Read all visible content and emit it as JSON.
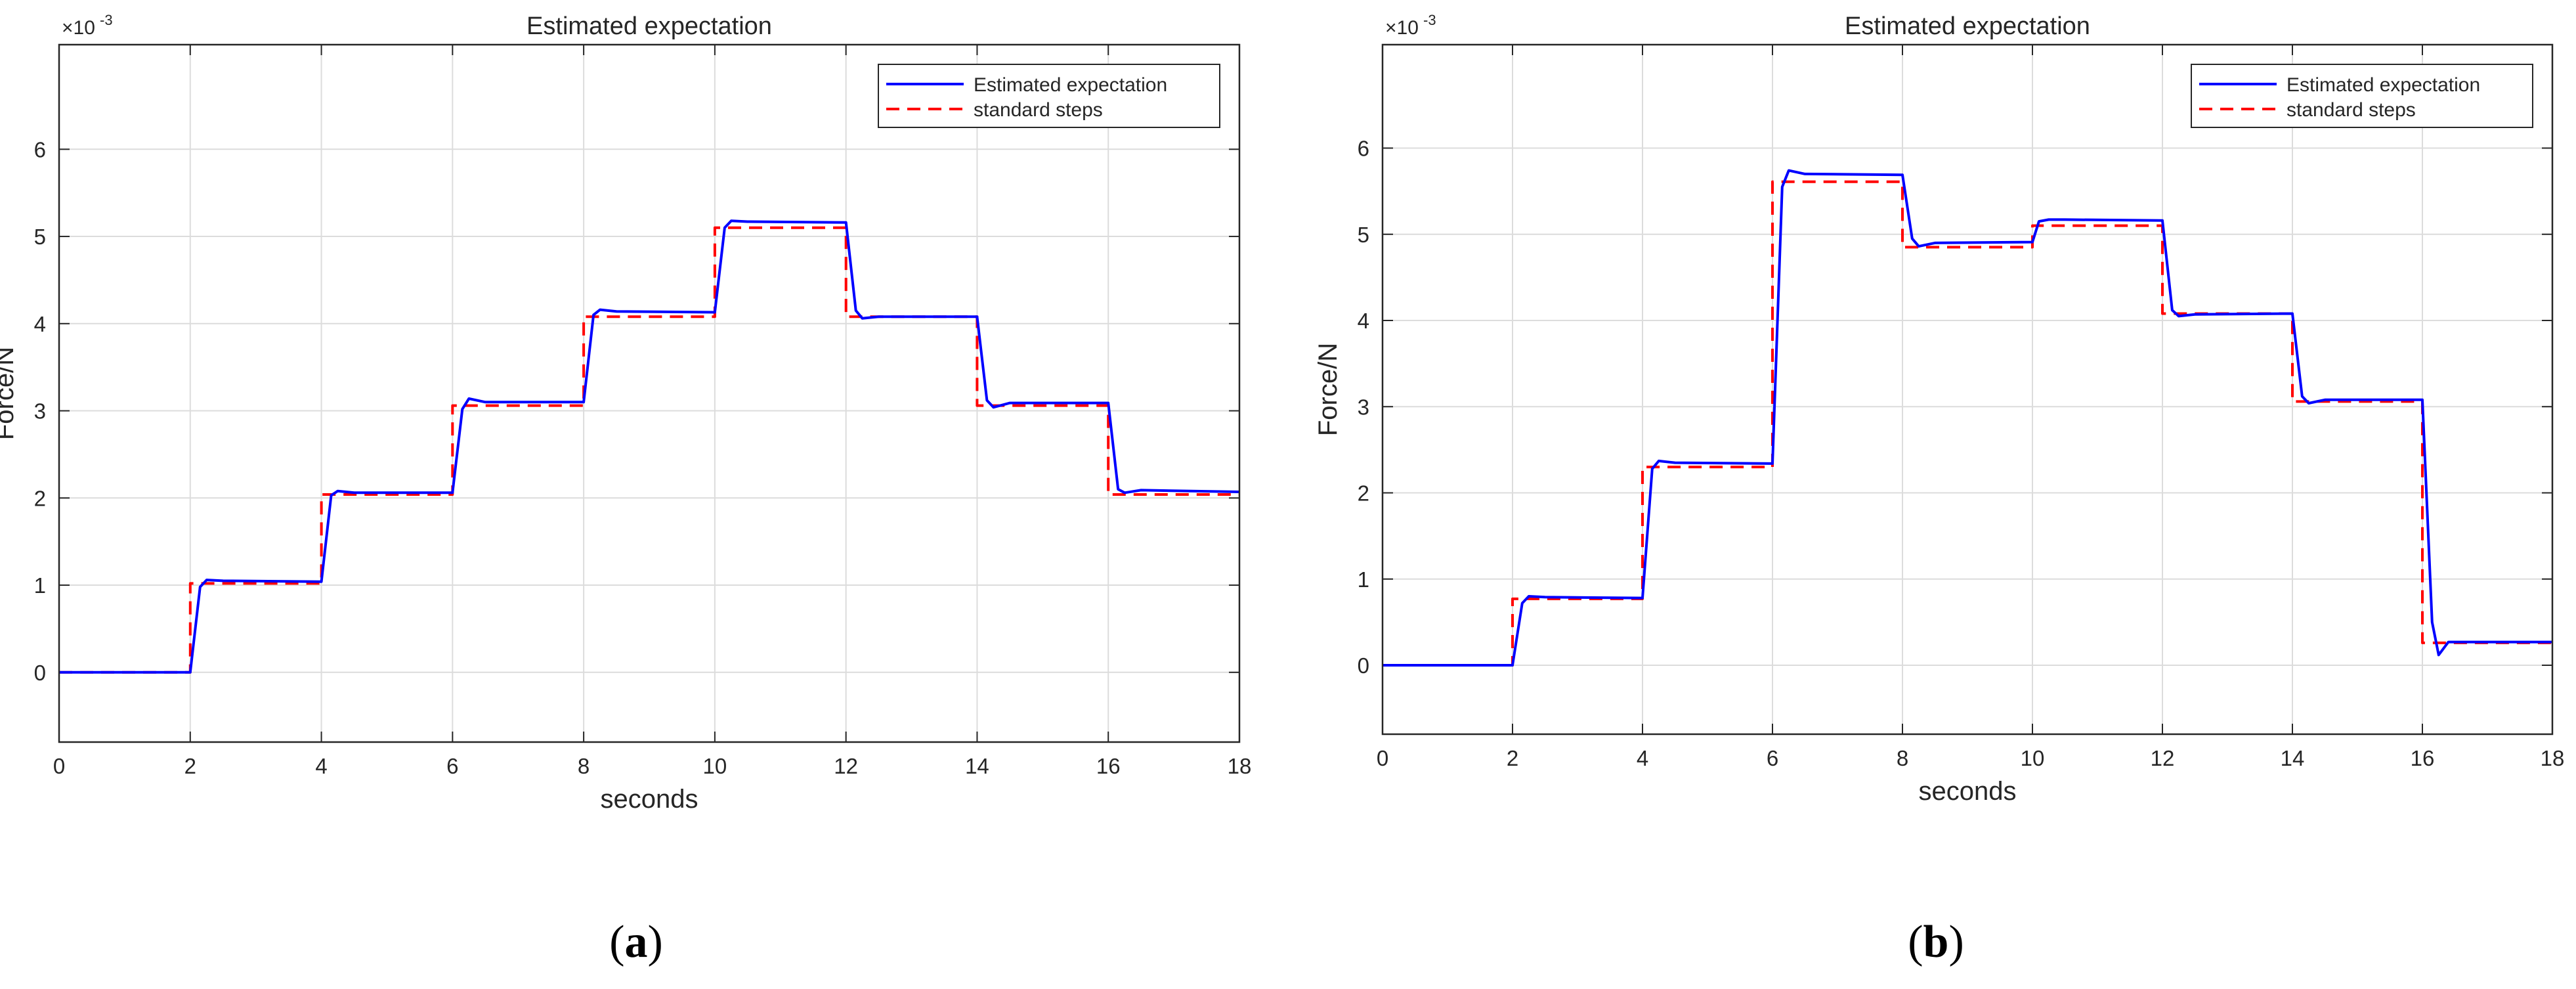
{
  "panels": [
    {
      "caption_label": "a"
    },
    {
      "caption_label": "b"
    }
  ],
  "colors": {
    "estimate": "#0000ff",
    "steps": "#ff0000",
    "grid": "#dcdcdc",
    "axis": "#262626"
  },
  "chart_data": [
    {
      "type": "line",
      "title": "Estimated expectation",
      "xlabel": "seconds",
      "ylabel": "Force/N",
      "y_exponent_label": "×10",
      "y_exponent_power": "-3",
      "xlim": [
        0,
        18
      ],
      "ylim": [
        -0.8,
        7.2
      ],
      "xticks": [
        0,
        2,
        4,
        6,
        8,
        10,
        12,
        14,
        16,
        18
      ],
      "yticks": [
        0,
        1,
        2,
        3,
        4,
        5,
        6
      ],
      "grid": true,
      "legend_position": "top-right",
      "series": [
        {
          "name": "Estimated expectation",
          "style": "solid",
          "x": [
            0,
            2.0,
            2.15,
            2.25,
            2.5,
            4.0,
            4.15,
            4.25,
            4.5,
            6.0,
            6.15,
            6.25,
            6.5,
            8.0,
            8.15,
            8.25,
            8.5,
            10.0,
            10.15,
            10.25,
            10.5,
            12.0,
            12.15,
            12.25,
            12.5,
            14.0,
            14.15,
            14.25,
            14.5,
            16.0,
            16.15,
            16.25,
            16.5,
            18.0
          ],
          "y": [
            0,
            0,
            0.98,
            1.06,
            1.05,
            1.04,
            2.03,
            2.08,
            2.06,
            2.06,
            3.02,
            3.14,
            3.1,
            3.1,
            4.1,
            4.16,
            4.14,
            4.13,
            5.1,
            5.18,
            5.17,
            5.16,
            4.15,
            4.06,
            4.08,
            4.08,
            3.12,
            3.04,
            3.09,
            3.09,
            2.1,
            2.06,
            2.09,
            2.07
          ]
        },
        {
          "name": "standard steps",
          "style": "dashed",
          "x": [
            0,
            2,
            2,
            4,
            4,
            6,
            6,
            8,
            8,
            10,
            10,
            12,
            12,
            14,
            14,
            16,
            16,
            18
          ],
          "y": [
            0,
            0,
            1.02,
            1.02,
            2.04,
            2.04,
            3.06,
            3.06,
            4.08,
            4.08,
            5.1,
            5.1,
            4.08,
            4.08,
            3.06,
            3.06,
            2.04,
            2.04
          ]
        }
      ]
    },
    {
      "type": "line",
      "title": "Estimated expectation",
      "xlabel": "seconds",
      "ylabel": "Force/N",
      "y_exponent_label": "×10",
      "y_exponent_power": "-3",
      "xlim": [
        0,
        18
      ],
      "ylim": [
        -0.8,
        7.2
      ],
      "xticks": [
        0,
        2,
        4,
        6,
        8,
        10,
        12,
        14,
        16,
        18
      ],
      "yticks": [
        0,
        1,
        2,
        3,
        4,
        5,
        6
      ],
      "grid": true,
      "legend_position": "top-right",
      "series": [
        {
          "name": "Estimated expectation",
          "style": "solid",
          "x": [
            0,
            2.0,
            2.15,
            2.25,
            2.5,
            4.0,
            4.15,
            4.25,
            4.5,
            6.0,
            6.15,
            6.25,
            6.5,
            8.0,
            8.15,
            8.25,
            8.5,
            10.0,
            10.1,
            10.25,
            10.5,
            12.0,
            12.15,
            12.25,
            12.5,
            14.0,
            14.15,
            14.25,
            14.5,
            16.0,
            16.15,
            16.25,
            16.4,
            18.0
          ],
          "y": [
            0,
            0,
            0.72,
            0.8,
            0.79,
            0.78,
            2.28,
            2.37,
            2.35,
            2.34,
            5.55,
            5.74,
            5.7,
            5.69,
            4.95,
            4.86,
            4.9,
            4.91,
            5.15,
            5.17,
            5.17,
            5.16,
            4.12,
            4.05,
            4.07,
            4.08,
            3.12,
            3.04,
            3.08,
            3.08,
            0.5,
            0.12,
            0.27,
            0.27
          ]
        },
        {
          "name": "standard steps",
          "style": "dashed",
          "x": [
            0,
            2,
            2,
            4,
            4,
            6,
            6,
            8,
            8,
            10,
            10,
            12,
            12,
            14,
            14,
            16,
            16,
            18
          ],
          "y": [
            0,
            0,
            0.77,
            0.77,
            2.3,
            2.3,
            5.61,
            5.61,
            4.85,
            4.85,
            5.1,
            5.1,
            4.08,
            4.08,
            3.06,
            3.06,
            0.26,
            0.26
          ]
        }
      ]
    }
  ]
}
